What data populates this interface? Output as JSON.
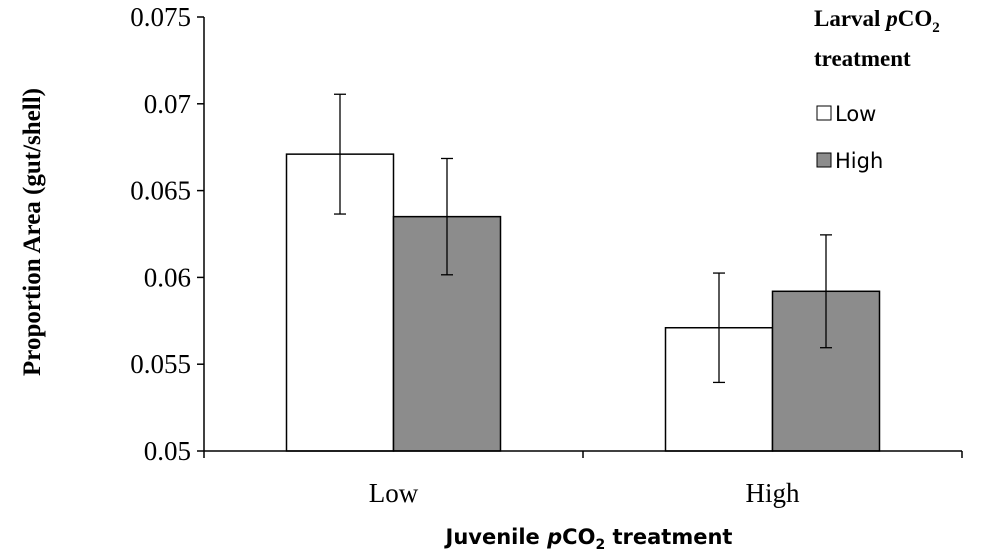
{
  "chart_data": {
    "type": "bar",
    "categories": [
      "Low",
      "High"
    ],
    "series": [
      {
        "name": "Low",
        "values": [
          0.0671,
          0.0571
        ],
        "errors": [
          0.00345,
          0.00315
        ],
        "color": "#ffffff"
      },
      {
        "name": "High",
        "values": [
          0.0635,
          0.0592
        ],
        "errors": [
          0.00335,
          0.00325
        ],
        "color": "#8c8c8c"
      }
    ],
    "ylim": [
      0.05,
      0.075
    ],
    "yticks": [
      "0.05",
      "0.055",
      "0.06",
      "0.065",
      "0.07",
      "0.075"
    ],
    "ylabel": "Proportion Area (gut/shell)",
    "xlabel": {
      "prefix": "Juvenile ",
      "italic": "p",
      "main": "CO",
      "sub": "2",
      "suffix": " treatment"
    },
    "legend": {
      "title_line1": {
        "prefix": "Larval ",
        "italic": "p",
        "main": "CO",
        "sub": "2"
      },
      "title_line2": "treatment",
      "placement": "top-right"
    },
    "grid": false
  }
}
